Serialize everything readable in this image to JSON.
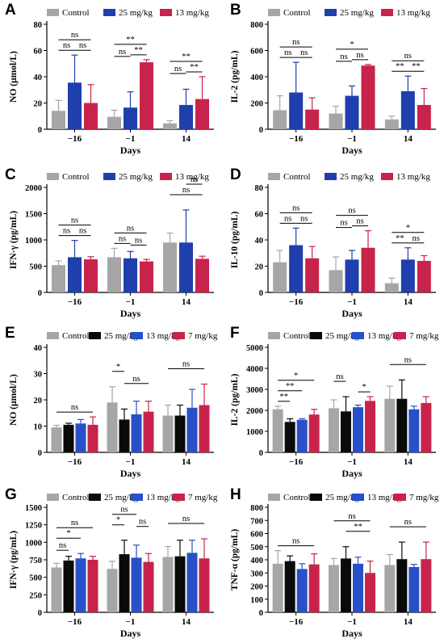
{
  "colors": {
    "control": "#a6a6a6",
    "dose25_blue": "#1f3fae",
    "dose13_red": "#c8234b",
    "dose25_black": "#0a0a0a",
    "dose13_blue": "#2850c8",
    "dose7": "#c8234b"
  },
  "chart_data": [
    {
      "type": "bar",
      "panel": "A",
      "ylabel": "NO (μmol/L)",
      "xlabel": "Days",
      "categories": [
        "−16",
        "−1",
        "14"
      ],
      "ylim": [
        0,
        80
      ],
      "yticks": [
        0,
        20,
        40,
        60,
        80
      ],
      "series": [
        {
          "name": "Control",
          "values": [
            14,
            9.5,
            4.5
          ],
          "errors": [
            8,
            5,
            2
          ]
        },
        {
          "name": "25 mg/kg",
          "values": [
            35.5,
            16.5,
            18.5
          ],
          "errors": [
            21,
            12,
            12
          ]
        },
        {
          "name": "13 mg/kg",
          "values": [
            20,
            51,
            23
          ],
          "errors": [
            14,
            2,
            17
          ]
        }
      ],
      "annotations": [
        {
          "label": "ns",
          "group": 0,
          "from": 0,
          "to": 2,
          "level": 2
        },
        {
          "label": "ns",
          "group": 0,
          "from": 0,
          "to": 1,
          "level": 1
        },
        {
          "label": "ns",
          "group": 0,
          "from": 1,
          "to": 2,
          "level": 1
        },
        {
          "label": "**",
          "group": 1,
          "from": 0,
          "to": 2,
          "level": 2
        },
        {
          "label": "ns",
          "group": 1,
          "from": 0,
          "to": 1,
          "level": 1
        },
        {
          "label": "**",
          "group": 1,
          "from": 1,
          "to": 2,
          "level": 1
        },
        {
          "label": "**",
          "group": 2,
          "from": 0,
          "to": 2,
          "level": 2
        },
        {
          "label": "ns",
          "group": 2,
          "from": 0,
          "to": 1,
          "level": 1
        },
        {
          "label": "**",
          "group": 2,
          "from": 1,
          "to": 2,
          "level": 1
        }
      ]
    },
    {
      "type": "bar",
      "panel": "B",
      "ylabel": "IL-2 (pg/mL)",
      "xlabel": "Days",
      "categories": [
        "−16",
        "−1",
        "14"
      ],
      "ylim": [
        0,
        800
      ],
      "yticks": [
        0,
        200,
        400,
        600,
        800
      ],
      "series": [
        {
          "name": "Control",
          "values": [
            145,
            120,
            75
          ],
          "errors": [
            110,
            55,
            25
          ]
        },
        {
          "name": "25 mg/kg",
          "values": [
            280,
            255,
            290
          ],
          "errors": [
            230,
            75,
            115
          ]
        },
        {
          "name": "13 mg/kg",
          "values": [
            150,
            485,
            185
          ],
          "errors": [
            90,
            8,
            125
          ]
        }
      ],
      "annotations": [
        {
          "label": "ns",
          "group": 0,
          "from": 0,
          "to": 2,
          "level": 2
        },
        {
          "label": "ns",
          "group": 0,
          "from": 0,
          "to": 1,
          "level": 1
        },
        {
          "label": "ns",
          "group": 0,
          "from": 1,
          "to": 2,
          "level": 1
        },
        {
          "label": "*",
          "group": 1,
          "from": 0,
          "to": 2,
          "level": 2
        },
        {
          "label": "ns",
          "group": 1,
          "from": 0,
          "to": 1,
          "level": 1
        },
        {
          "label": "ns",
          "group": 1,
          "from": 1,
          "to": 2,
          "level": 1
        },
        {
          "label": "ns",
          "group": 2,
          "from": 0,
          "to": 2,
          "level": 2
        },
        {
          "label": "**",
          "group": 2,
          "from": 0,
          "to": 1,
          "level": 1
        },
        {
          "label": "**",
          "group": 2,
          "from": 1,
          "to": 2,
          "level": 1
        }
      ]
    },
    {
      "type": "bar",
      "panel": "C",
      "ylabel": "IFN-γ (pg/mL)",
      "xlabel": "Days",
      "categories": [
        "−16",
        "−1",
        "14"
      ],
      "ylim": [
        0,
        2000
      ],
      "yticks": [
        0,
        500,
        1000,
        1500,
        2000
      ],
      "series": [
        {
          "name": "Control",
          "values": [
            520,
            670,
            950
          ],
          "errors": [
            80,
            170,
            180
          ]
        },
        {
          "name": "25 mg/kg",
          "values": [
            670,
            650,
            950
          ],
          "errors": [
            320,
            130,
            620
          ]
        },
        {
          "name": "13 mg/kg",
          "values": [
            630,
            590,
            640
          ],
          "errors": [
            50,
            40,
            50
          ]
        }
      ],
      "annotations": [
        {
          "label": "ns",
          "group": 0,
          "from": 0,
          "to": 2,
          "level": 2
        },
        {
          "label": "ns",
          "group": 0,
          "from": 0,
          "to": 1,
          "level": 1
        },
        {
          "label": "ns",
          "group": 0,
          "from": 1,
          "to": 2,
          "level": 1
        },
        {
          "label": "ns",
          "group": 1,
          "from": 0,
          "to": 2,
          "level": 2
        },
        {
          "label": "ns",
          "group": 1,
          "from": 0,
          "to": 1,
          "level": 1
        },
        {
          "label": "ns",
          "group": 1,
          "from": 1,
          "to": 2,
          "level": 1
        },
        {
          "label": "ns",
          "group": 2,
          "from": 0,
          "to": 2,
          "level": 2
        },
        {
          "label": "ns",
          "group": 2,
          "from": 1,
          "to": 2,
          "level": 3
        }
      ]
    },
    {
      "type": "bar",
      "panel": "D",
      "ylabel": "IL-10 (pg/mL)",
      "xlabel": "Days",
      "categories": [
        "−16",
        "−1",
        "14"
      ],
      "ylim": [
        0,
        80
      ],
      "yticks": [
        0,
        20,
        40,
        60,
        80
      ],
      "series": [
        {
          "name": "Control",
          "values": [
            23,
            17,
            7
          ],
          "errors": [
            9,
            10,
            4
          ]
        },
        {
          "name": "25 mg/kg",
          "values": [
            36,
            25,
            25
          ],
          "errors": [
            13,
            7,
            9
          ]
        },
        {
          "name": "13 mg/kg",
          "values": [
            26,
            34,
            24
          ],
          "errors": [
            9,
            13,
            4
          ]
        }
      ],
      "annotations": [
        {
          "label": "ns",
          "group": 0,
          "from": 0,
          "to": 2,
          "level": 2
        },
        {
          "label": "ns",
          "group": 0,
          "from": 0,
          "to": 1,
          "level": 1
        },
        {
          "label": "ns",
          "group": 0,
          "from": 1,
          "to": 2,
          "level": 1
        },
        {
          "label": "ns",
          "group": 1,
          "from": 0,
          "to": 2,
          "level": 2
        },
        {
          "label": "ns",
          "group": 1,
          "from": 0,
          "to": 1,
          "level": 1
        },
        {
          "label": "ns",
          "group": 1,
          "from": 1,
          "to": 2,
          "level": 1
        },
        {
          "label": "*",
          "group": 2,
          "from": 0,
          "to": 2,
          "level": 2
        },
        {
          "label": "**",
          "group": 2,
          "from": 0,
          "to": 1,
          "level": 1
        },
        {
          "label": "ns",
          "group": 2,
          "from": 1,
          "to": 2,
          "level": 1
        }
      ]
    },
    {
      "type": "bar",
      "panel": "E",
      "ylabel": "NO (μmol/L)",
      "xlabel": "Days",
      "categories": [
        "−16",
        "−1",
        "14"
      ],
      "ylim": [
        0,
        40
      ],
      "yticks": [
        0,
        10,
        20,
        30,
        40
      ],
      "series": [
        {
          "name": "Control",
          "values": [
            9.5,
            19,
            14
          ],
          "errors": [
            0.8,
            6,
            4
          ]
        },
        {
          "name": "25 mg/kg",
          "values": [
            10.5,
            12.5,
            14
          ],
          "errors": [
            0.6,
            4,
            4
          ]
        },
        {
          "name": "13 mg/kg",
          "values": [
            11,
            14.5,
            17
          ],
          "errors": [
            1.5,
            5,
            7
          ]
        },
        {
          "name": "7 mg/kg",
          "values": [
            10.5,
            15.5,
            18
          ],
          "errors": [
            3,
            4,
            8
          ]
        }
      ],
      "annotations": [
        {
          "label": "ns",
          "group": 0,
          "from": 0,
          "to": 3,
          "level": 1
        },
        {
          "label": "*",
          "group": 1,
          "from": 0,
          "to": 1,
          "level": 2
        },
        {
          "label": "ns",
          "group": 1,
          "from": 1,
          "to": 3,
          "level": 1
        },
        {
          "label": "ns",
          "group": 2,
          "from": 0,
          "to": 3,
          "level": 2
        }
      ]
    },
    {
      "type": "bar",
      "panel": "F",
      "ylabel": "IL-2 (pg/mL)",
      "xlabel": "Days",
      "categories": [
        "−16",
        "−1",
        "14"
      ],
      "ylim": [
        0,
        5000
      ],
      "yticks": [
        0,
        1000,
        2000,
        3000,
        4000,
        5000
      ],
      "series": [
        {
          "name": "Control",
          "values": [
            2050,
            2100,
            2550
          ],
          "errors": [
            150,
            400,
            600
          ]
        },
        {
          "name": "25 mg/kg",
          "values": [
            1450,
            1950,
            2550
          ],
          "errors": [
            150,
            700,
            900
          ]
        },
        {
          "name": "13 mg/kg",
          "values": [
            1550,
            2150,
            2050
          ],
          "errors": [
            50,
            100,
            150
          ]
        },
        {
          "name": "7 mg/kg",
          "values": [
            1800,
            2450,
            2350
          ],
          "errors": [
            250,
            200,
            300
          ]
        }
      ],
      "annotations": [
        {
          "label": "*",
          "group": 0,
          "from": 0,
          "to": 3,
          "level": 3
        },
        {
          "label": "**",
          "group": 0,
          "from": 0,
          "to": 2,
          "level": 2
        },
        {
          "label": "**",
          "group": 0,
          "from": 0,
          "to": 1,
          "level": 1
        },
        {
          "label": "ns",
          "group": 1,
          "from": 0,
          "to": 1,
          "level": 2
        },
        {
          "label": "*",
          "group": 1,
          "from": 2,
          "to": 3,
          "level": 1
        },
        {
          "label": "ns",
          "group": 2,
          "from": 0,
          "to": 3,
          "level": 2
        }
      ]
    },
    {
      "type": "bar",
      "panel": "G",
      "ylabel": "IFN-γ (pg/mL)",
      "xlabel": "Days",
      "categories": [
        "−16",
        "−1",
        "14"
      ],
      "ylim": [
        0,
        1500
      ],
      "yticks": [
        0,
        250,
        500,
        750,
        1000,
        1250,
        1500
      ],
      "series": [
        {
          "name": "Control",
          "values": [
            640,
            620,
            790
          ],
          "errors": [
            60,
            110,
            150
          ]
        },
        {
          "name": "25 mg/kg",
          "values": [
            740,
            830,
            800
          ],
          "errors": [
            60,
            200,
            230
          ]
        },
        {
          "name": "13 mg/kg",
          "values": [
            770,
            780,
            850
          ],
          "errors": [
            70,
            180,
            180
          ]
        },
        {
          "name": "7 mg/kg",
          "values": [
            750,
            720,
            770
          ],
          "errors": [
            50,
            120,
            280
          ]
        }
      ],
      "annotations": [
        {
          "label": "ns",
          "group": 0,
          "from": 0,
          "to": 3,
          "level": 3
        },
        {
          "label": "*",
          "group": 0,
          "from": 0,
          "to": 2,
          "level": 2
        },
        {
          "label": "ns",
          "group": 0,
          "from": 0,
          "to": 1,
          "level": 1
        },
        {
          "label": "ns",
          "group": 1,
          "from": 0,
          "to": 2,
          "level": 3
        },
        {
          "label": "*",
          "group": 1,
          "from": 0,
          "to": 1,
          "level": 2
        },
        {
          "label": "ns",
          "group": 1,
          "from": 2,
          "to": 3,
          "level": 2
        },
        {
          "label": "ns",
          "group": 2,
          "from": 0,
          "to": 3,
          "level": 2
        }
      ]
    },
    {
      "type": "bar",
      "panel": "H",
      "ylabel": "TNF-α (pg/mL)",
      "xlabel": "Days",
      "categories": [
        "−16",
        "−1",
        "14"
      ],
      "ylim": [
        0,
        800
      ],
      "yticks": [
        0,
        100,
        200,
        300,
        400,
        500,
        600,
        700,
        800
      ],
      "series": [
        {
          "name": "Control",
          "values": [
            370,
            360,
            360
          ],
          "errors": [
            100,
            50,
            80
          ]
        },
        {
          "name": "25 mg/kg",
          "values": [
            390,
            410,
            405
          ],
          "errors": [
            40,
            90,
            130
          ]
        },
        {
          "name": "13 mg/kg",
          "values": [
            330,
            370,
            345
          ],
          "errors": [
            40,
            50,
            20
          ]
        },
        {
          "name": "7 mg/kg",
          "values": [
            365,
            300,
            405
          ],
          "errors": [
            80,
            90,
            130
          ]
        }
      ],
      "annotations": [
        {
          "label": "ns",
          "group": 0,
          "from": 0,
          "to": 3,
          "level": 1
        },
        {
          "label": "ns",
          "group": 1,
          "from": 0,
          "to": 3,
          "level": 3
        },
        {
          "label": "**",
          "group": 1,
          "from": 1,
          "to": 3,
          "level": 2
        },
        {
          "label": "ns",
          "group": 2,
          "from": 0,
          "to": 3,
          "level": 2
        }
      ]
    }
  ]
}
